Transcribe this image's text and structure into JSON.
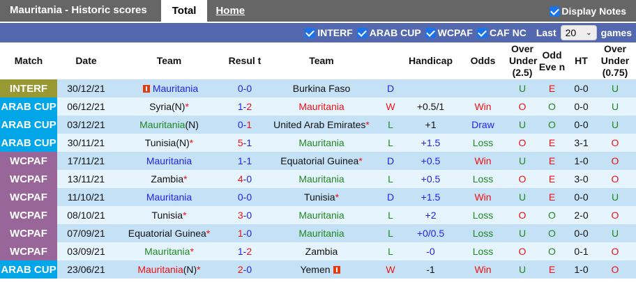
{
  "header": {
    "title": "Mauritania - Historic scores",
    "tabs": [
      {
        "label": "Total",
        "active": true
      },
      {
        "label": "Home",
        "active": false
      }
    ],
    "display_notes": "Display Notes"
  },
  "filters": {
    "items": [
      "INTERF",
      "ARAB CUP",
      "WCPAF",
      "CAF NC"
    ],
    "last_label": "Last",
    "last_value": "20",
    "games_label": "games"
  },
  "columns": [
    "Match",
    "Date",
    "Team",
    "Resul t",
    "Team",
    "",
    "Handicap",
    "Odds",
    "Over Under (2.5)",
    "Odd Eve n",
    "HT",
    "Over Under (0.75)"
  ],
  "colors": {
    "blue": "#2222ee",
    "red": "#ee1111",
    "green": "#228822",
    "black": "#111111",
    "INTERF": "#999933",
    "ARAB CUP": "#00a6e8",
    "WCPAF": "#996699"
  },
  "rows": [
    {
      "match": "INTERF",
      "date": "30/12/21",
      "home": {
        "name": "Mauritania",
        "color": "blue",
        "suffix": "",
        "star": false,
        "flag": true
      },
      "score": [
        "0",
        "0"
      ],
      "scolor": [
        "blue",
        "blue"
      ],
      "away": {
        "name": "Burkina Faso",
        "color": "black",
        "suffix": "",
        "star": false,
        "flag": false
      },
      "wl": "D",
      "handicap": "",
      "hcolor": "black",
      "odds": "",
      "ou": "U",
      "oe": "E",
      "ht": "0-0",
      "ou75": "U"
    },
    {
      "match": "ARAB CUP",
      "date": "06/12/21",
      "home": {
        "name": "Syria",
        "color": "black",
        "suffix": "(N)",
        "star": true,
        "flag": false
      },
      "score": [
        "1",
        "2"
      ],
      "scolor": [
        "blue",
        "red"
      ],
      "away": {
        "name": "Mauritania",
        "color": "red",
        "suffix": "",
        "star": false,
        "flag": false
      },
      "wl": "W",
      "handicap": "+0.5/1",
      "hcolor": "black",
      "odds": "Win",
      "ou": "O",
      "oe": "O",
      "ht": "0-0",
      "ou75": "U"
    },
    {
      "match": "ARAB CUP",
      "date": "03/12/21",
      "home": {
        "name": "Mauritania",
        "color": "green",
        "suffix": "(N)",
        "star": false,
        "flag": false
      },
      "score": [
        "0",
        "1"
      ],
      "scolor": [
        "blue",
        "red"
      ],
      "away": {
        "name": "United Arab Emirates",
        "color": "black",
        "suffix": "",
        "star": true,
        "flag": false
      },
      "wl": "L",
      "handicap": "+1",
      "hcolor": "black",
      "odds": "Draw",
      "ou": "U",
      "oe": "O",
      "ht": "0-0",
      "ou75": "U"
    },
    {
      "match": "ARAB CUP",
      "date": "30/11/21",
      "home": {
        "name": "Tunisia",
        "color": "black",
        "suffix": "(N)",
        "star": true,
        "flag": false
      },
      "score": [
        "5",
        "1"
      ],
      "scolor": [
        "red",
        "blue"
      ],
      "away": {
        "name": "Mauritania",
        "color": "green",
        "suffix": "",
        "star": false,
        "flag": false
      },
      "wl": "L",
      "handicap": "+1.5",
      "hcolor": "blue",
      "odds": "Loss",
      "ou": "O",
      "oe": "E",
      "ht": "3-1",
      "ou75": "O"
    },
    {
      "match": "WCPAF",
      "date": "17/11/21",
      "home": {
        "name": "Mauritania",
        "color": "blue",
        "suffix": "",
        "star": false,
        "flag": false
      },
      "score": [
        "1",
        "1"
      ],
      "scolor": [
        "blue",
        "blue"
      ],
      "away": {
        "name": "Equatorial Guinea",
        "color": "black",
        "suffix": "",
        "star": true,
        "flag": false
      },
      "wl": "D",
      "handicap": "+0.5",
      "hcolor": "blue",
      "odds": "Win",
      "ou": "U",
      "oe": "E",
      "ht": "1-0",
      "ou75": "O"
    },
    {
      "match": "WCPAF",
      "date": "13/11/21",
      "home": {
        "name": "Zambia",
        "color": "black",
        "suffix": "",
        "star": true,
        "flag": false
      },
      "score": [
        "4",
        "0"
      ],
      "scolor": [
        "red",
        "blue"
      ],
      "away": {
        "name": "Mauritania",
        "color": "green",
        "suffix": "",
        "star": false,
        "flag": false
      },
      "wl": "L",
      "handicap": "+0.5",
      "hcolor": "blue",
      "odds": "Loss",
      "ou": "O",
      "oe": "E",
      "ht": "3-0",
      "ou75": "O"
    },
    {
      "match": "WCPAF",
      "date": "11/10/21",
      "home": {
        "name": "Mauritania",
        "color": "blue",
        "suffix": "",
        "star": false,
        "flag": false
      },
      "score": [
        "0",
        "0"
      ],
      "scolor": [
        "blue",
        "blue"
      ],
      "away": {
        "name": "Tunisia",
        "color": "black",
        "suffix": "",
        "star": true,
        "flag": false
      },
      "wl": "D",
      "handicap": "+1.5",
      "hcolor": "blue",
      "odds": "Win",
      "ou": "U",
      "oe": "E",
      "ht": "0-0",
      "ou75": "U"
    },
    {
      "match": "WCPAF",
      "date": "08/10/21",
      "home": {
        "name": "Tunisia",
        "color": "black",
        "suffix": "",
        "star": true,
        "flag": false
      },
      "score": [
        "3",
        "0"
      ],
      "scolor": [
        "red",
        "blue"
      ],
      "away": {
        "name": "Mauritania",
        "color": "green",
        "suffix": "",
        "star": false,
        "flag": false
      },
      "wl": "L",
      "handicap": "+2",
      "hcolor": "blue",
      "odds": "Loss",
      "ou": "O",
      "oe": "O",
      "ht": "2-0",
      "ou75": "O"
    },
    {
      "match": "WCPAF",
      "date": "07/09/21",
      "home": {
        "name": "Equatorial Guinea",
        "color": "black",
        "suffix": "",
        "star": true,
        "flag": false
      },
      "score": [
        "1",
        "0"
      ],
      "scolor": [
        "red",
        "blue"
      ],
      "away": {
        "name": "Mauritania",
        "color": "green",
        "suffix": "",
        "star": false,
        "flag": false
      },
      "wl": "L",
      "handicap": "+0/0.5",
      "hcolor": "blue",
      "odds": "Loss",
      "ou": "U",
      "oe": "O",
      "ht": "0-0",
      "ou75": "U"
    },
    {
      "match": "WCPAF",
      "date": "03/09/21",
      "home": {
        "name": "Mauritania",
        "color": "green",
        "suffix": "",
        "star": true,
        "flag": false
      },
      "score": [
        "1",
        "2"
      ],
      "scolor": [
        "blue",
        "red"
      ],
      "away": {
        "name": "Zambia",
        "color": "black",
        "suffix": "",
        "star": false,
        "flag": false
      },
      "wl": "L",
      "handicap": "-0",
      "hcolor": "blue",
      "odds": "Loss",
      "ou": "O",
      "oe": "O",
      "ht": "0-1",
      "ou75": "O"
    },
    {
      "match": "ARAB CUP",
      "date": "23/06/21",
      "home": {
        "name": "Mauritania",
        "color": "red",
        "suffix": "(N)",
        "star": true,
        "flag": false
      },
      "score": [
        "2",
        "0"
      ],
      "scolor": [
        "red",
        "blue"
      ],
      "away": {
        "name": "Yemen",
        "color": "black",
        "suffix": "",
        "star": false,
        "flag": true
      },
      "wl": "W",
      "handicap": "-1",
      "hcolor": "black",
      "odds": "Win",
      "ou": "U",
      "oe": "E",
      "ht": "1-0",
      "ou75": "O"
    }
  ]
}
